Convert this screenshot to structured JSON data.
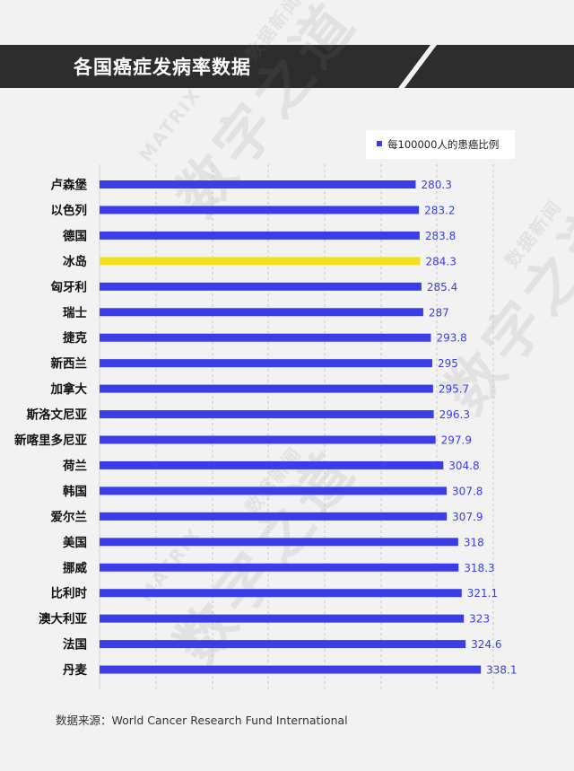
{
  "header": {
    "title": "各国癌症发病率数据"
  },
  "watermark": {
    "latin": "MATRIX",
    "brand": "数字之道",
    "tag": "数据新闻"
  },
  "source": {
    "text": "数据来源：World Cancer Research Fund International"
  },
  "colors": {
    "bar": "#3b3de8",
    "highlight": "#f0e01f",
    "label": "#3b3de8",
    "header_bg": "#2d2d2d"
  },
  "chart_data": {
    "type": "bar",
    "orientation": "horizontal",
    "categories": [
      "卢森堡",
      "以色列",
      "德国",
      "冰岛",
      "匈牙利",
      "瑞士",
      "捷克",
      "新西兰",
      "加拿大",
      "斯洛文尼亚",
      "新喀里多尼亚",
      "荷兰",
      "韩国",
      "爱尔兰",
      "美国",
      "挪威",
      "比利时",
      "澳大利亚",
      "法国",
      "丹麦"
    ],
    "values": [
      280.3,
      283.2,
      283.8,
      284.3,
      285.4,
      287,
      293.8,
      295,
      295.7,
      296.3,
      297.9,
      304.8,
      307.8,
      307.9,
      318,
      318.3,
      321.1,
      323,
      324.6,
      338.1
    ],
    "value_labels": [
      "280.3",
      "283.2",
      "283.8",
      "284.3",
      "285.4",
      "287",
      "293.8",
      "295",
      "295.7",
      "296.3",
      "297.9",
      "304.8",
      "307.8",
      "307.9",
      "318",
      "318.3",
      "321.1",
      "323",
      "324.6",
      "338.1"
    ],
    "highlight_category": "冰岛",
    "series": [
      {
        "name": "每100000人的患癌比例",
        "values": [
          280.3,
          283.2,
          283.8,
          284.3,
          285.4,
          287,
          293.8,
          295,
          295.7,
          296.3,
          297.9,
          304.8,
          307.8,
          307.9,
          318,
          318.3,
          321.1,
          323,
          324.6,
          338.1
        ]
      }
    ],
    "legend": "top-right",
    "grid": "vertical dashed"
  }
}
